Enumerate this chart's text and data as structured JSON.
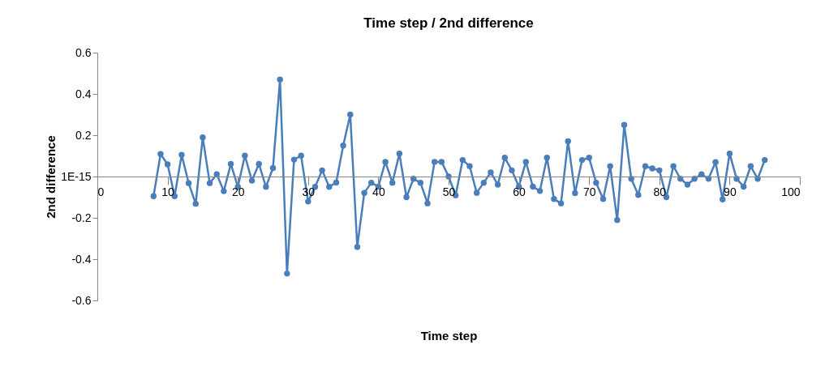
{
  "chart_data": {
    "type": "line",
    "title": "Time step / 2nd difference",
    "xlabel": "Time step",
    "ylabel": "2nd difference",
    "x": [
      8,
      9,
      10,
      11,
      12,
      13,
      14,
      15,
      16,
      17,
      18,
      19,
      20,
      21,
      22,
      23,
      24,
      25,
      26,
      27,
      28,
      29,
      30,
      31,
      32,
      33,
      34,
      35,
      36,
      37,
      38,
      39,
      40,
      41,
      42,
      43,
      44,
      45,
      46,
      47,
      48,
      49,
      50,
      51,
      52,
      53,
      54,
      55,
      56,
      57,
      58,
      59,
      60,
      61,
      62,
      63,
      64,
      65,
      66,
      67,
      68,
      69,
      70,
      71,
      72,
      73,
      74,
      75,
      76,
      77,
      78,
      79,
      80,
      81,
      82,
      83,
      84,
      85,
      86,
      87,
      88,
      89,
      90,
      91,
      92,
      93,
      94,
      95
    ],
    "series": [
      {
        "color": "#4a7ebb",
        "values": [
          -0.095,
          0.109,
          0.059,
          -0.095,
          0.105,
          -0.032,
          -0.132,
          0.189,
          -0.032,
          0.011,
          -0.071,
          0.061,
          -0.05,
          0.101,
          -0.02,
          0.061,
          -0.05,
          0.041,
          0.47,
          -0.47,
          0.082,
          0.101,
          -0.121,
          -0.05,
          0.03,
          -0.05,
          -0.029,
          0.15,
          0.3,
          -0.341,
          -0.079,
          -0.03,
          -0.049,
          0.071,
          -0.03,
          0.111,
          -0.1,
          -0.011,
          -0.03,
          -0.13,
          0.071,
          0.071,
          0,
          -0.091,
          0.08,
          0.05,
          -0.079,
          -0.03,
          0.02,
          -0.039,
          0.091,
          0.03,
          -0.049,
          0.071,
          -0.049,
          -0.07,
          0.091,
          -0.109,
          -0.13,
          0.171,
          -0.08,
          0.08,
          0.091,
          -0.03,
          -0.109,
          0.05,
          -0.211,
          0.25,
          -0.011,
          -0.089,
          0.05,
          0.039,
          0.03,
          -0.1,
          0.05,
          -0.011,
          -0.039,
          -0.011,
          0.011,
          -0.011,
          0.07,
          -0.111,
          0.111,
          -0.011,
          -0.049,
          0.05,
          -0.011,
          0.08
        ]
      }
    ],
    "xlim": [
      0,
      100
    ],
    "xticks": [
      0,
      10,
      20,
      30,
      40,
      50,
      60,
      70,
      80,
      90,
      100
    ],
    "ylim": [
      -0.6,
      0.6
    ],
    "yticks": [
      -0.6,
      -0.4,
      -0.2,
      {
        "value": 0,
        "label": "1E-15"
      },
      0.2,
      0.4,
      0.6
    ],
    "marker": "circle",
    "line_style": "solid",
    "grid": false,
    "legend": false
  }
}
